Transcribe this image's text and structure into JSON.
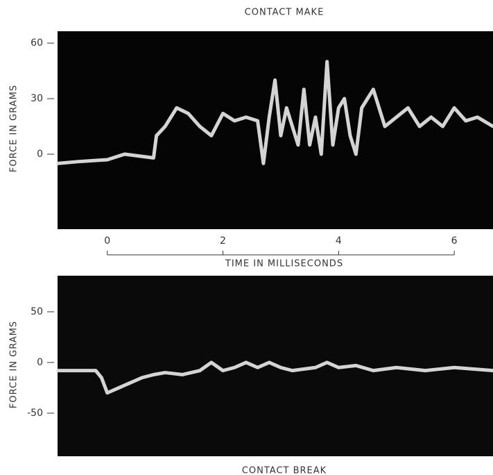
{
  "chart_data": [
    {
      "type": "line",
      "title": "CONTACT MAKE",
      "y_label": "FORCE IN GRAMS",
      "x_label": "TIME IN MILLISECONDS",
      "background": "#050505",
      "xlim": [
        -0.86,
        6.67
      ],
      "xticks": [
        0,
        2,
        4,
        6
      ],
      "ylim": [
        -40.5,
        66.4
      ],
      "yticks": [
        0,
        30,
        60
      ],
      "series": [
        {
          "color": "#e6e6e6",
          "x": [
            -0.86,
            -0.5,
            0,
            0.3,
            0.8,
            0.85,
            1.0,
            1.2,
            1.4,
            1.6,
            1.8,
            2.0,
            2.2,
            2.4,
            2.6,
            2.7,
            2.8,
            2.9,
            3.0,
            3.1,
            3.3,
            3.4,
            3.5,
            3.6,
            3.7,
            3.8,
            3.9,
            4.0,
            4.1,
            4.2,
            4.3,
            4.4,
            4.6,
            4.8,
            5.0,
            5.2,
            5.4,
            5.6,
            5.8,
            6.0,
            6.2,
            6.4,
            6.67
          ],
          "values": [
            -5,
            -4,
            -3,
            0,
            -2,
            10,
            15,
            25,
            22,
            15,
            10,
            22,
            18,
            20,
            18,
            -5,
            20,
            40,
            10,
            25,
            5,
            35,
            5,
            20,
            0,
            50,
            5,
            25,
            30,
            10,
            0,
            25,
            35,
            15,
            20,
            25,
            15,
            20,
            15,
            25,
            18,
            20,
            15
          ]
        }
      ]
    },
    {
      "type": "line",
      "title": "CONTACT BREAK",
      "y_label": "FORCE IN GRAMS",
      "background": "#0a0a0a",
      "xlim": [
        -0.86,
        6.67
      ],
      "ylim": [
        -92.5,
        85.6
      ],
      "yticks": [
        -50,
        0,
        50
      ],
      "series": [
        {
          "color": "#e6e6e6",
          "x": [
            -0.86,
            -0.2,
            -0.1,
            0,
            0.2,
            0.6,
            0.8,
            1.0,
            1.3,
            1.6,
            1.8,
            2.0,
            2.2,
            2.4,
            2.6,
            2.8,
            3.0,
            3.2,
            3.6,
            3.8,
            4.0,
            4.3,
            4.6,
            5.0,
            5.5,
            6.0,
            6.67
          ],
          "values": [
            -8,
            -8,
            -15,
            -30,
            -25,
            -15,
            -12,
            -10,
            -12,
            -8,
            0,
            -8,
            -5,
            0,
            -5,
            0,
            -5,
            -8,
            -5,
            0,
            -5,
            -3,
            -8,
            -5,
            -8,
            -5,
            -8
          ]
        }
      ]
    }
  ]
}
